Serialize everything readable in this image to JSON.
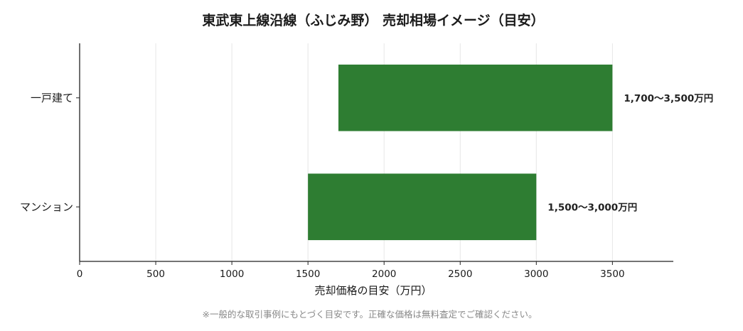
{
  "chart_data": {
    "type": "bar",
    "orientation": "horizontal",
    "title": "東武東上線沿線（ふじみ野） 売却相場イメージ（目安）",
    "xlabel": "売却価格の目安（万円）",
    "ylabel": "",
    "xlim": [
      0,
      3900
    ],
    "xticks": [
      0,
      500,
      1000,
      1500,
      2000,
      2500,
      3000,
      3500
    ],
    "grid": "vertical",
    "categories": [
      "一戸建て",
      "マンション"
    ],
    "ranges": [
      {
        "category": "一戸建て",
        "low": 1700,
        "high": 3500,
        "label": "1,700〜3,500万円"
      },
      {
        "category": "マンション",
        "low": 1500,
        "high": 3000,
        "label": "1,500〜3,000万円"
      }
    ],
    "bar_color": "#2e7d32",
    "footnote": "※一般的な取引事例にもとづく目安です。正確な価格は無料査定でご確認ください。"
  }
}
